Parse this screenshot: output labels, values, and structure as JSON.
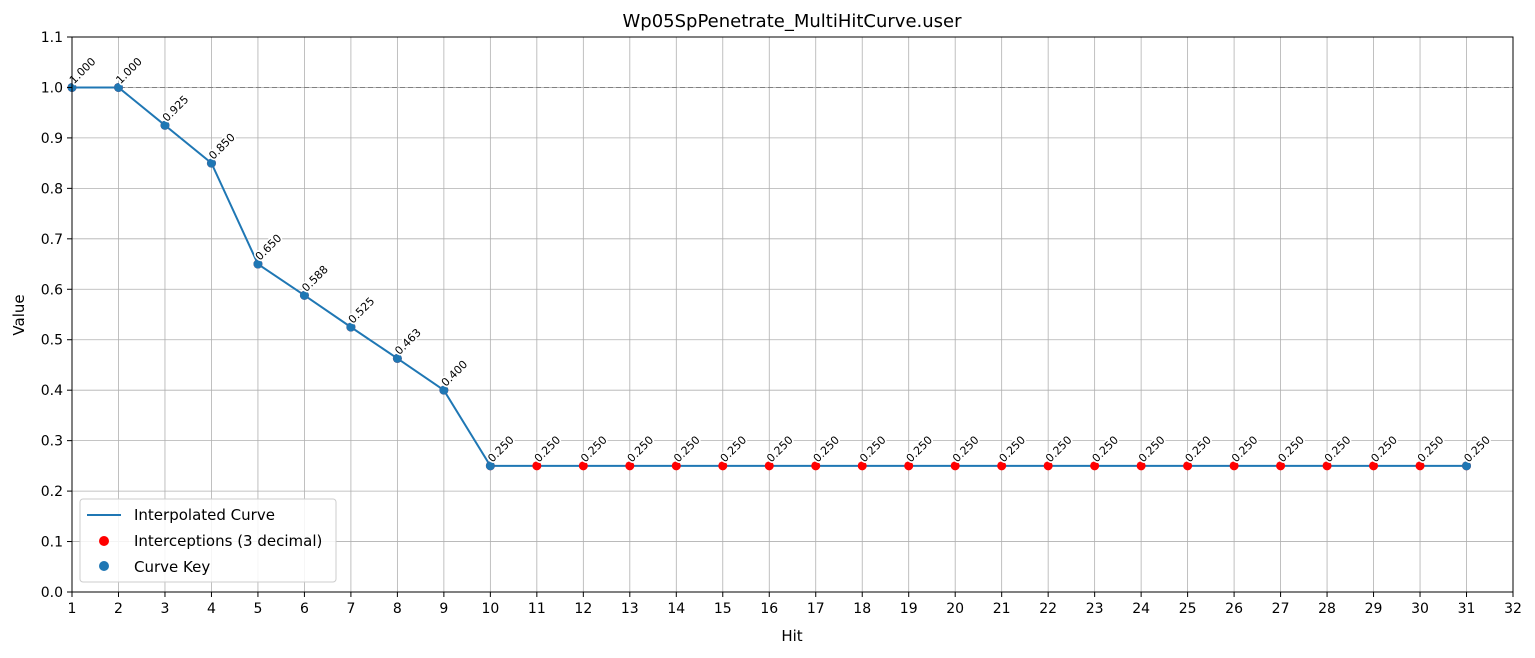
{
  "chart_data": {
    "type": "line",
    "title": "Wp05SpPenetrate_MultiHitCurve.user",
    "xlabel": "Hit",
    "ylabel": "Value",
    "xlim": [
      1,
      32
    ],
    "ylim": [
      0.0,
      1.1
    ],
    "x_ticks": [
      1,
      2,
      3,
      4,
      5,
      6,
      7,
      8,
      9,
      10,
      11,
      12,
      13,
      14,
      15,
      16,
      17,
      18,
      19,
      20,
      21,
      22,
      23,
      24,
      25,
      26,
      27,
      28,
      29,
      30,
      31,
      32
    ],
    "y_ticks": [
      "0.0",
      "0.1",
      "0.2",
      "0.3",
      "0.4",
      "0.5",
      "0.6",
      "0.7",
      "0.8",
      "0.9",
      "1.0",
      "1.1"
    ],
    "grid": true,
    "reference_line": {
      "y": 1.0,
      "style": "dashed",
      "color": "#808080"
    },
    "legend_position": "lower-left",
    "series": [
      {
        "name": "Interpolated Curve",
        "kind": "line",
        "color": "#1f77b4",
        "x": [
          1,
          2,
          3,
          4,
          5,
          6,
          7,
          8,
          9,
          10,
          11,
          12,
          13,
          14,
          15,
          16,
          17,
          18,
          19,
          20,
          21,
          22,
          23,
          24,
          25,
          26,
          27,
          28,
          29,
          30,
          31
        ],
        "y": [
          1.0,
          1.0,
          0.925,
          0.85,
          0.65,
          0.588,
          0.525,
          0.463,
          0.4,
          0.25,
          0.25,
          0.25,
          0.25,
          0.25,
          0.25,
          0.25,
          0.25,
          0.25,
          0.25,
          0.25,
          0.25,
          0.25,
          0.25,
          0.25,
          0.25,
          0.25,
          0.25,
          0.25,
          0.25,
          0.25,
          0.25
        ]
      },
      {
        "name": "Interceptions (3 decimal)",
        "kind": "scatter",
        "color": "#ff0000",
        "x": [
          1,
          2,
          3,
          4,
          5,
          6,
          7,
          8,
          9,
          10,
          11,
          12,
          13,
          14,
          15,
          16,
          17,
          18,
          19,
          20,
          21,
          22,
          23,
          24,
          25,
          26,
          27,
          28,
          29,
          30,
          31
        ],
        "y": [
          1.0,
          1.0,
          0.925,
          0.85,
          0.65,
          0.588,
          0.525,
          0.463,
          0.4,
          0.25,
          0.25,
          0.25,
          0.25,
          0.25,
          0.25,
          0.25,
          0.25,
          0.25,
          0.25,
          0.25,
          0.25,
          0.25,
          0.25,
          0.25,
          0.25,
          0.25,
          0.25,
          0.25,
          0.25,
          0.25,
          0.25
        ]
      },
      {
        "name": "Curve Key",
        "kind": "scatter",
        "color": "#1f77b4",
        "x": [
          1,
          2,
          3,
          4,
          5,
          6,
          7,
          8,
          9,
          10,
          31
        ],
        "y": [
          1.0,
          1.0,
          0.925,
          0.85,
          0.65,
          0.588,
          0.525,
          0.463,
          0.4,
          0.25,
          0.25
        ]
      }
    ],
    "data_labels": [
      "1.000",
      "1.000",
      "0.925",
      "0.850",
      "0.650",
      "0.588",
      "0.525",
      "0.463",
      "0.400",
      "0.250",
      "0.250",
      "0.250",
      "0.250",
      "0.250",
      "0.250",
      "0.250",
      "0.250",
      "0.250",
      "0.250",
      "0.250",
      "0.250",
      "0.250",
      "0.250",
      "0.250",
      "0.250",
      "0.250",
      "0.250",
      "0.250",
      "0.250",
      "0.250",
      "0.250"
    ]
  }
}
